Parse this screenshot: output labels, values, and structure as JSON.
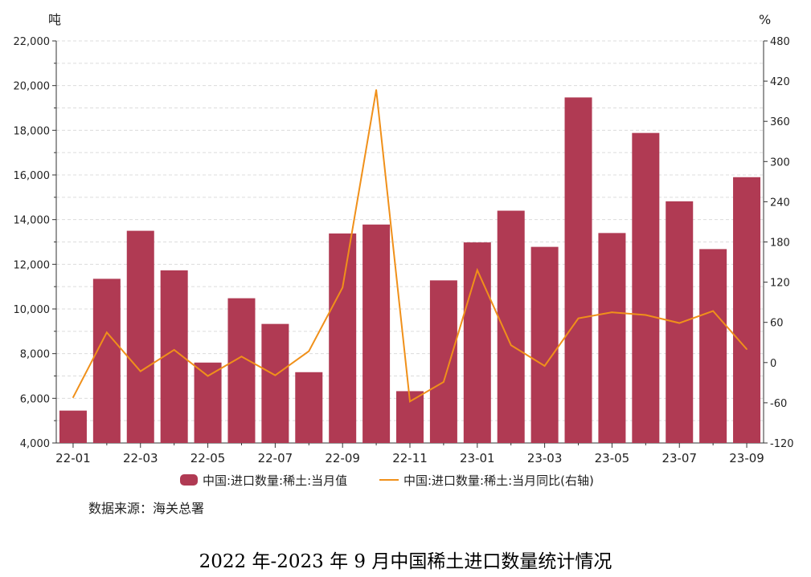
{
  "chart_data": {
    "type": "bar",
    "title": "2022 年-2023 年 9 月中国稀土进口数量统计情况",
    "source": "数据来源：海关总署",
    "left_unit": "吨",
    "right_unit": "%",
    "categories": [
      "22-01",
      "22-02",
      "22-03",
      "22-04",
      "22-05",
      "22-06",
      "22-07",
      "22-08",
      "22-09",
      "22-10",
      "22-11",
      "22-12",
      "23-01",
      "23-02",
      "23-03",
      "23-04",
      "23-05",
      "23-06",
      "23-07",
      "23-08",
      "23-09"
    ],
    "x_tick_labels": [
      "22-01",
      "22-03",
      "22-05",
      "22-07",
      "22-09",
      "22-11",
      "23-01",
      "23-03",
      "23-05",
      "23-07",
      "23-09"
    ],
    "ylim": [
      4000,
      22000
    ],
    "y_ticks": [
      "4,000",
      "6,000",
      "8,000",
      "10,000",
      "12,000",
      "14,000",
      "16,000",
      "18,000",
      "20,000",
      "22,000"
    ],
    "y2lim": [
      -120,
      480
    ],
    "y2_ticks": [
      "-120",
      "-60",
      "0",
      "60",
      "120",
      "180",
      "240",
      "300",
      "360",
      "420",
      "480"
    ],
    "grid": true,
    "legend_position": "bottom",
    "series": [
      {
        "name": "中国:进口数量:稀土:当月值",
        "type": "bar",
        "axis": "left",
        "color": "#b03a53",
        "values": [
          5450,
          11350,
          13500,
          11730,
          7600,
          10480,
          9330,
          7170,
          13380,
          13780,
          6320,
          11280,
          12980,
          14400,
          12780,
          19470,
          13400,
          17880,
          14820,
          12680,
          15900
        ]
      },
      {
        "name": "中国:进口数量:稀土:当月同比(右轴)",
        "type": "line",
        "axis": "right",
        "color": "#f0901a",
        "values": [
          -52,
          45,
          -13,
          19,
          -20,
          9,
          -19,
          17,
          112,
          407,
          -58,
          -29,
          138,
          26,
          -5,
          66,
          75,
          71,
          59,
          77,
          20
        ]
      }
    ]
  }
}
